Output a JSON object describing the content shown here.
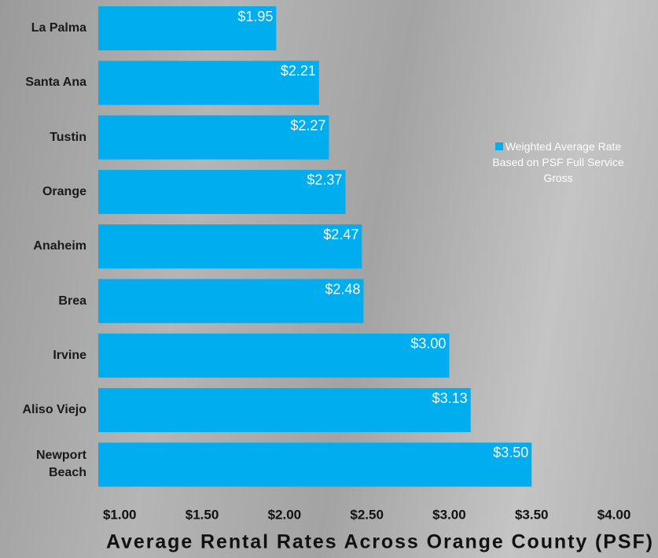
{
  "chart_data": {
    "type": "bar",
    "orientation": "horizontal",
    "title": "Average Rental Rates Across Orange County (PSF)",
    "categories": [
      "La Palma",
      "Santa Ana",
      "Tustin",
      "Orange",
      "Anaheim",
      "Brea",
      "Irvine",
      "Aliso Viejo",
      "Newport Beach"
    ],
    "series": [
      {
        "name": "Weighted Average Rate Based on PSF Full Service Gross",
        "color": "#00aeef",
        "values": [
          1.95,
          2.21,
          2.27,
          2.37,
          2.47,
          2.48,
          3.0,
          3.13,
          3.5
        ],
        "value_labels": [
          "$1.95",
          "$2.21",
          "$2.27",
          "$2.37",
          "$2.47",
          "$2.48",
          "$3.00",
          "$3.13",
          "$3.50"
        ]
      }
    ],
    "xlim": [
      0.87,
      4.1
    ],
    "xticks": [
      {
        "value": 1,
        "label": "$1.00"
      },
      {
        "value": 1.5,
        "label": "$1.50"
      },
      {
        "value": 2,
        "label": "$2.00"
      },
      {
        "value": 2.5,
        "label": "$2.50"
      },
      {
        "value": 3,
        "label": "$3.00"
      },
      {
        "value": 3.5,
        "label": "$3.50"
      },
      {
        "value": 4,
        "label": "$4.00"
      }
    ],
    "legend": "right"
  }
}
